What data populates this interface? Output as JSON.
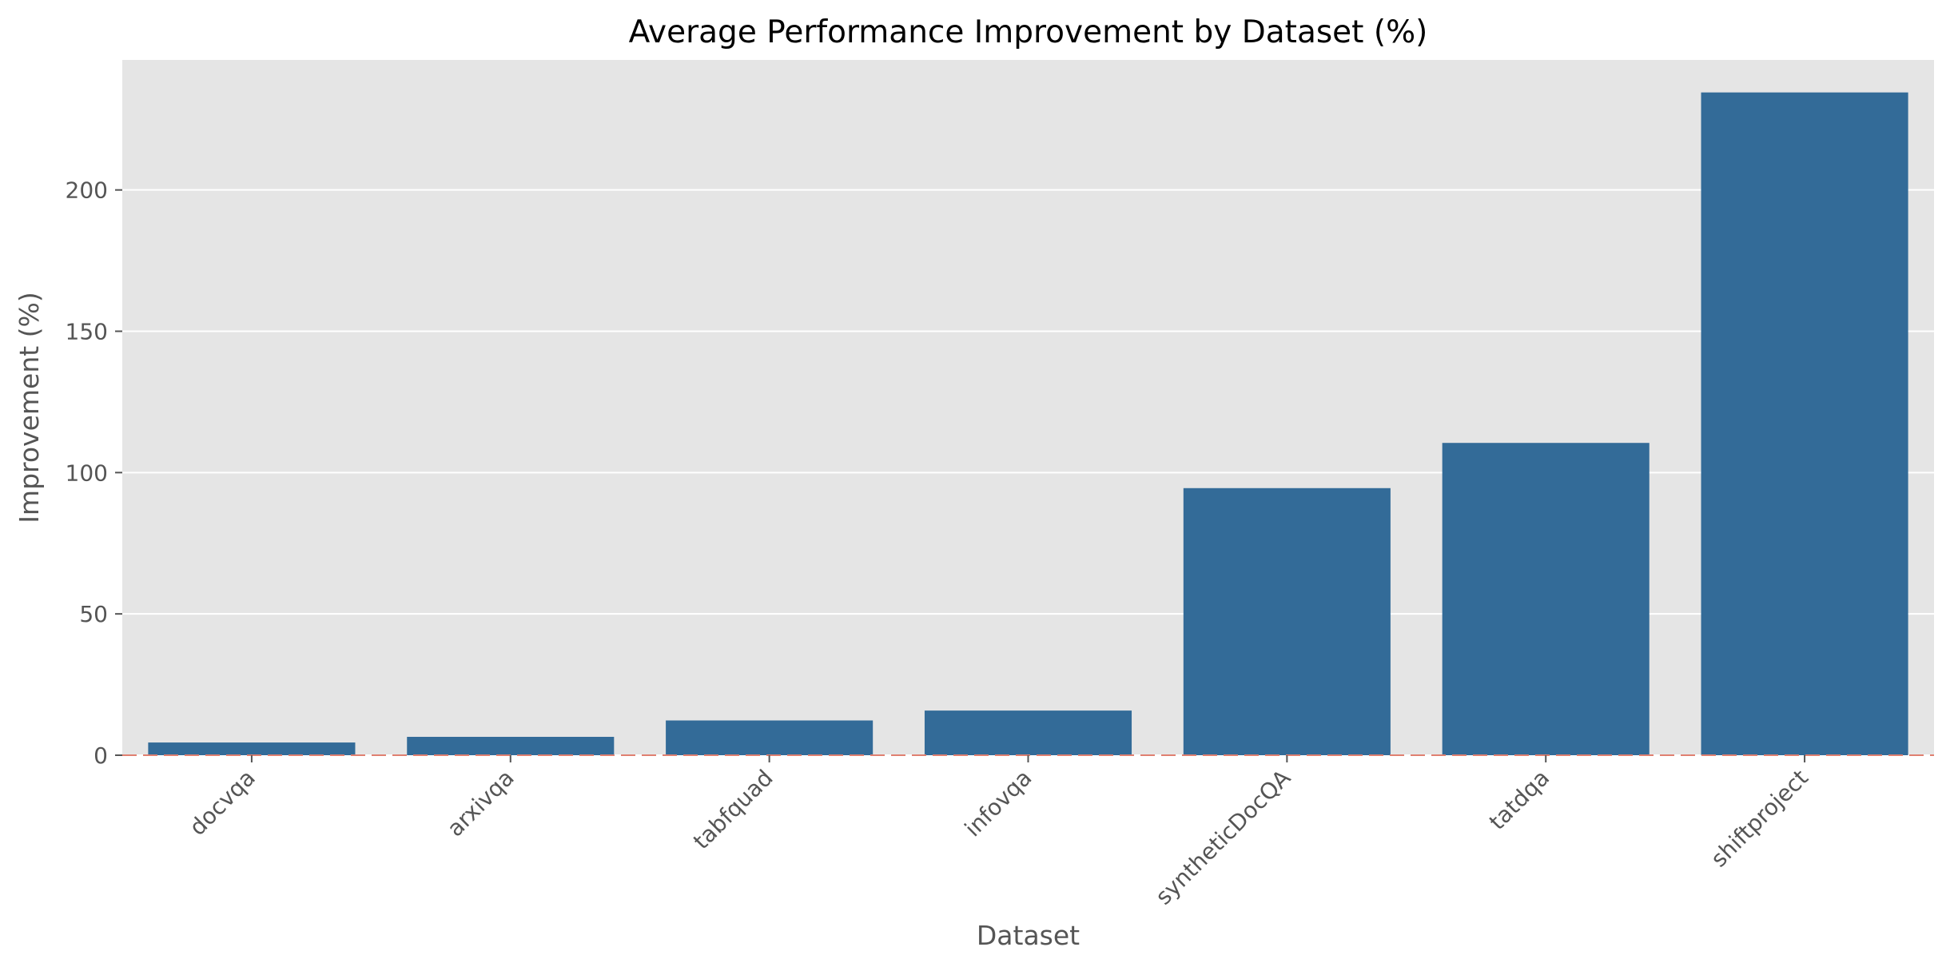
{
  "chart_data": {
    "type": "bar",
    "title": "Average Performance Improvement by Dataset (%)",
    "xlabel": "Dataset",
    "ylabel": "Improvement (%)",
    "categories": [
      "docvqa",
      "arxivqa",
      "tabfquad",
      "infovqa",
      "syntheticDocQA",
      "tatdqa",
      "shiftproject"
    ],
    "values": [
      4.5,
      6.5,
      12.3,
      15.8,
      94.5,
      110.5,
      234.5
    ],
    "yticks": [
      0,
      50,
      100,
      150,
      200
    ],
    "ylim": [
      0,
      246
    ],
    "grid": true,
    "reference_line": {
      "y": 0,
      "style": "dashed"
    },
    "colors": {
      "bar": "#336b98",
      "plot_background": "#e5e5e5",
      "grid": "#ffffff",
      "reference_line": "#e08070",
      "tick": "#555555"
    }
  }
}
